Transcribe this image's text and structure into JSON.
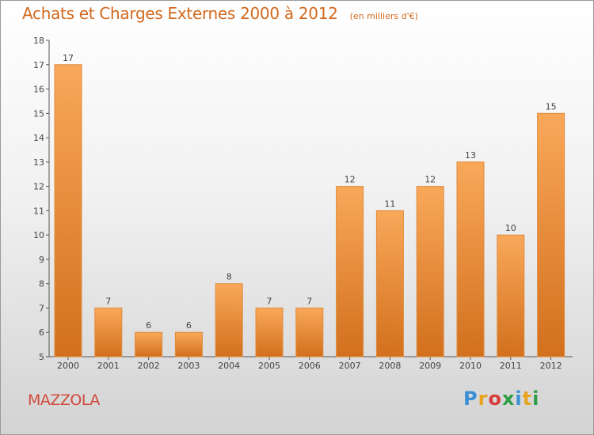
{
  "header": {
    "title": "Achats et Charges Externes 2000 à 2012",
    "subtitle": "(en milliers d'€)"
  },
  "footer": {
    "commune": "MAZZOLA",
    "logo": {
      "text": "Proxiti",
      "colors": [
        "#3a8fd6",
        "#e9a21d",
        "#d93a3a",
        "#2d9e45",
        "#3a8fd6",
        "#e9a21d",
        "#2d9e45"
      ]
    }
  },
  "chart_data": {
    "type": "bar",
    "title": "Achats et Charges Externes 2000 à 2012",
    "subtitle": "(en milliers d'€)",
    "categories": [
      "2000",
      "2001",
      "2002",
      "2003",
      "2004",
      "2005",
      "2006",
      "2007",
      "2008",
      "2009",
      "2010",
      "2011",
      "2012"
    ],
    "values": [
      17,
      7,
      6,
      6,
      8,
      7,
      7,
      12,
      11,
      12,
      13,
      10,
      15
    ],
    "ylim": [
      5,
      18
    ],
    "yticks": [
      5,
      6,
      7,
      8,
      9,
      10,
      11,
      12,
      13,
      14,
      15,
      16,
      17,
      18
    ],
    "grid": false,
    "colors": {
      "bar_light": "#f9a85a",
      "bar_dark": "#d2701d",
      "bar_stroke": "#e08a3a",
      "axis": "#555555",
      "text": "#444444"
    }
  }
}
